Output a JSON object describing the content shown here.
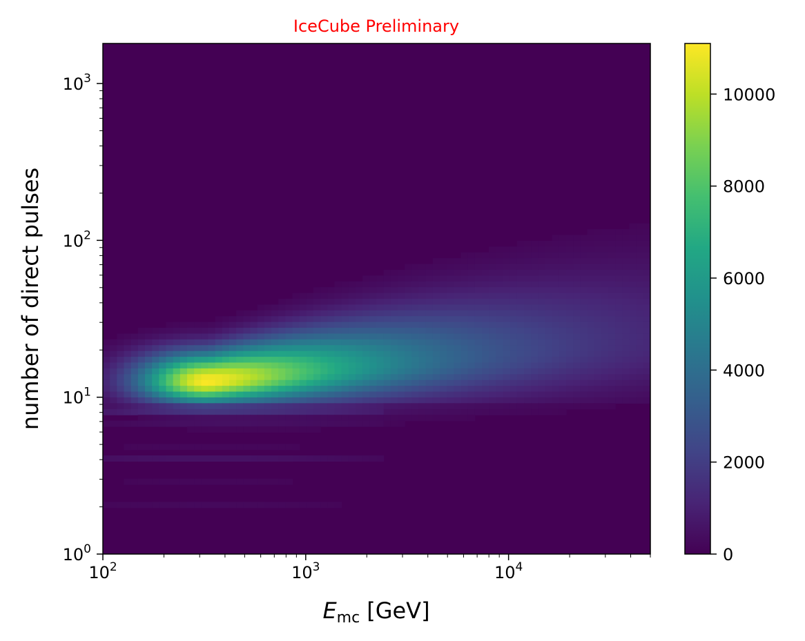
{
  "chart_data": {
    "type": "heatmap",
    "title": "IceCube Preliminary",
    "xlabel": {
      "symbol": "E",
      "subscript": "mc",
      "unit": "[GeV]"
    },
    "ylabel": "number of direct pulses",
    "x_scale": "log",
    "y_scale": "log",
    "xlim": [
      100,
      50000
    ],
    "ylim": [
      1,
      1800
    ],
    "x_ticks": [
      {
        "value": 100,
        "base": "10",
        "exp": "2"
      },
      {
        "value": 1000,
        "base": "10",
        "exp": "3"
      },
      {
        "value": 10000,
        "base": "10",
        "exp": "4"
      }
    ],
    "y_ticks": [
      {
        "value": 1,
        "base": "10",
        "exp": "0"
      },
      {
        "value": 10,
        "base": "10",
        "exp": "1"
      },
      {
        "value": 100,
        "base": "10",
        "exp": "2"
      },
      {
        "value": 1000,
        "base": "10",
        "exp": "3"
      }
    ],
    "colorbar": {
      "colormap": "viridis",
      "range": [
        0,
        11100
      ],
      "ticks": [
        {
          "value": 0,
          "label": "0"
        },
        {
          "value": 2000,
          "label": "2000"
        },
        {
          "value": 4000,
          "label": "4000"
        },
        {
          "value": 6000,
          "label": "6000"
        },
        {
          "value": 8000,
          "label": "8000"
        },
        {
          "value": 10000,
          "label": "10000"
        }
      ]
    },
    "peak": {
      "x": 330,
      "y": 13,
      "count": 11100
    },
    "grid": false,
    "colors": {
      "title": "#ff0000",
      "background": "#440154"
    }
  }
}
